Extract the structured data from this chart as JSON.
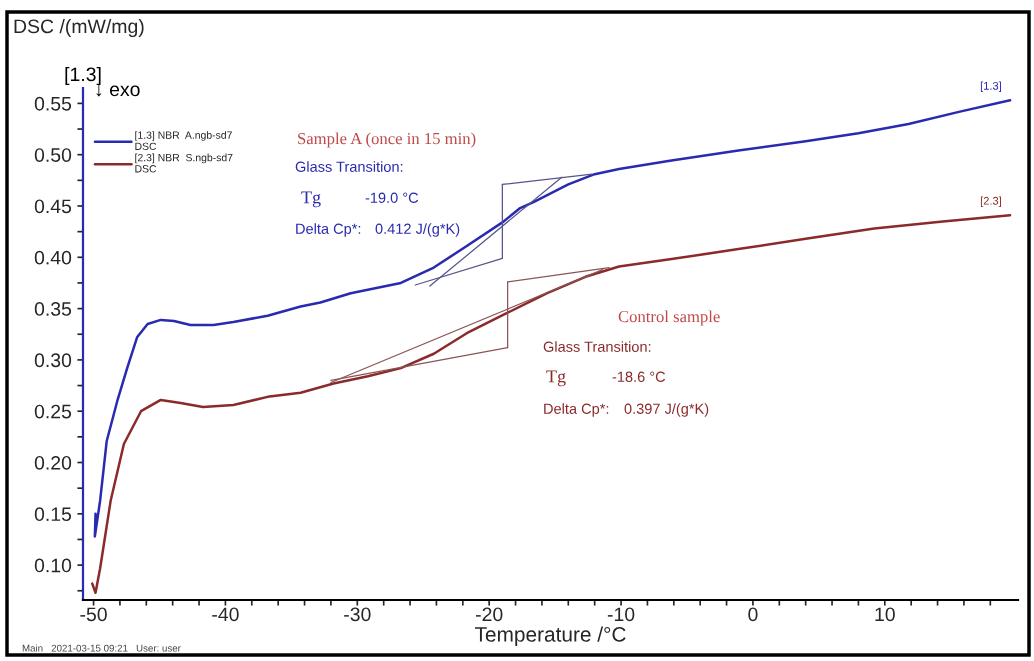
{
  "chart_data": {
    "type": "line",
    "xlabel": "Temperature /°C",
    "ylabel": "DSC /(mW/mg)",
    "xlim": [
      -50.8,
      20.1
    ],
    "ylim": [
      0.066,
      0.565
    ],
    "xticks": [
      -50,
      {
        "value": -48,
        "label": null
      },
      {
        "value": -46,
        "label": null
      },
      {
        "value": -44,
        "label": null
      },
      {
        "value": -42,
        "label": null
      },
      -40,
      {
        "value": -38,
        "label": null
      },
      {
        "value": -36,
        "label": null
      },
      {
        "value": -34,
        "label": null
      },
      {
        "value": -32,
        "label": null
      },
      -30,
      {
        "value": -28,
        "label": null
      },
      {
        "value": -26,
        "label": null
      },
      {
        "value": -24,
        "label": null
      },
      {
        "value": -22,
        "label": null
      },
      -20,
      {
        "value": -18,
        "label": null
      },
      {
        "value": -16,
        "label": null
      },
      {
        "value": -14,
        "label": null
      },
      {
        "value": -12,
        "label": null
      },
      -10,
      {
        "value": -8,
        "label": null
      },
      {
        "value": -6,
        "label": null
      },
      {
        "value": -4,
        "label": null
      },
      {
        "value": -2,
        "label": null
      },
      0,
      {
        "value": 2,
        "label": null
      },
      {
        "value": 4,
        "label": null
      },
      {
        "value": 6,
        "label": null
      },
      {
        "value": 8,
        "label": null
      },
      10,
      {
        "value": 12,
        "label": null
      },
      {
        "value": 14,
        "label": null
      },
      {
        "value": 16,
        "label": null
      },
      {
        "value": 18,
        "label": null
      }
    ],
    "yticks": [
      {
        "value": 0.075,
        "label": null
      },
      {
        "value": 0.1,
        "label": "0.10"
      },
      {
        "value": 0.125,
        "label": null
      },
      {
        "value": 0.15,
        "label": "0.15"
      },
      {
        "value": 0.175,
        "label": null
      },
      {
        "value": 0.2,
        "label": "0.20"
      },
      {
        "value": 0.225,
        "label": null
      },
      {
        "value": 0.25,
        "label": "0.25"
      },
      {
        "value": 0.275,
        "label": null
      },
      {
        "value": 0.3,
        "label": "0.30"
      },
      {
        "value": 0.325,
        "label": null
      },
      {
        "value": 0.35,
        "label": "0.35"
      },
      {
        "value": 0.375,
        "label": null
      },
      {
        "value": 0.4,
        "label": "0.40"
      },
      {
        "value": 0.425,
        "label": null
      },
      {
        "value": 0.45,
        "label": "0.45"
      },
      {
        "value": 0.475,
        "label": null
      },
      {
        "value": 0.5,
        "label": "0.50"
      },
      {
        "value": 0.525,
        "label": null
      },
      {
        "value": 0.55,
        "label": "0.55"
      }
    ],
    "grid": false,
    "legend": "top left",
    "marker": "none",
    "line_style": "solid",
    "series": [
      {
        "name": "[1.3] NBR  A.ngb-sd7\nDSC",
        "color": "#2a2ab0",
        "x": [
          -49.85,
          -49.9,
          -49.5,
          -49.0,
          -48.2,
          -47.45,
          -46.7,
          -45.9,
          -44.9,
          -43.9,
          -42.65,
          -40.9,
          -39.4,
          -36.8,
          -34.3,
          -32.8,
          -30.5,
          -26.7,
          -24.2,
          -21.7,
          -19.0,
          -17.65,
          -16.6,
          -14.0,
          -12.0,
          -10.15,
          -6.3,
          -1.1,
          4.0,
          8.0,
          11.8,
          15.7,
          19.5
        ],
        "values": [
          0.15,
          0.128,
          0.163,
          0.221,
          0.26,
          0.292,
          0.322,
          0.335,
          0.339,
          0.338,
          0.334,
          0.334,
          0.337,
          0.343,
          0.352,
          0.356,
          0.365,
          0.375,
          0.39,
          0.411,
          0.434,
          0.448,
          0.454,
          0.471,
          0.481,
          0.486,
          0.494,
          0.504,
          0.513,
          0.521,
          0.53,
          0.542,
          0.553
        ]
      },
      {
        "name": "[2.3] NBR  S.ngb-sd7\nDSC",
        "color": "#8b2a2a",
        "x": [
          -50.1,
          -49.85,
          -49.5,
          -48.7,
          -47.7,
          -46.4,
          -44.9,
          -43.4,
          -41.7,
          -39.4,
          -36.8,
          -34.3,
          -31.8,
          -29.2,
          -26.7,
          -24.2,
          -21.7,
          -18.6,
          -15.6,
          -12.7,
          -10.15,
          -6.3,
          -1.1,
          4.0,
          9.2,
          14.4,
          19.5
        ],
        "values": [
          0.082,
          0.073,
          0.097,
          0.163,
          0.218,
          0.25,
          0.261,
          0.258,
          0.254,
          0.256,
          0.264,
          0.268,
          0.277,
          0.284,
          0.292,
          0.306,
          0.326,
          0.346,
          0.365,
          0.381,
          0.391,
          0.398,
          0.408,
          0.418,
          0.428,
          0.435,
          0.441
        ]
      },
      {
        "color": "#55558a",
        "x": [
          -25.6,
          -19.0
        ],
        "values": [
          0.373,
          0.399
        ]
      },
      {
        "color": "#55558a",
        "x": [
          -19.0,
          -12.2
        ],
        "values": [
          0.471,
          0.481
        ]
      },
      {
        "color": "#55558a",
        "x": [
          -24.5,
          -14.5
        ],
        "values": [
          0.372,
          0.478
        ]
      },
      {
        "color": "#55558a",
        "x": [
          -19.0,
          -19.0
        ],
        "values": [
          0.399,
          0.471
        ]
      },
      {
        "color": "#8a5555",
        "x": [
          -32.0,
          -18.6
        ],
        "values": [
          0.28,
          0.312
        ]
      },
      {
        "color": "#8a5555",
        "x": [
          -18.6,
          -10.9
        ],
        "values": [
          0.376,
          0.39
        ]
      },
      {
        "color": "#8a5555",
        "x": [
          -32.0,
          -11.4
        ],
        "values": [
          0.278,
          0.388
        ]
      },
      {
        "color": "#8a5555",
        "x": [
          -18.6,
          -18.6
        ],
        "values": [
          0.312,
          0.376
        ]
      }
    ],
    "annotations": [
      "[1.3]",
      "↓ exo",
      "Sample A (once in 15 min)",
      "Glass Transition:",
      "Tg",
      "-19.0 °C",
      "Delta Cp*:",
      "0.412 J/(g*K)",
      "Control sample",
      "Glass Transition:",
      "Tg",
      "-18.6 °C",
      "Delta Cp*:",
      "0.397 J/(g*K)",
      "Main   2021-03-15 09:21   User: user",
      {
        "text": "[1.3]",
        "x": 19.5,
        "y": 0.553
      },
      {
        "text": "[2.3]",
        "x": 19.5,
        "y": 0.441
      }
    ]
  }
}
